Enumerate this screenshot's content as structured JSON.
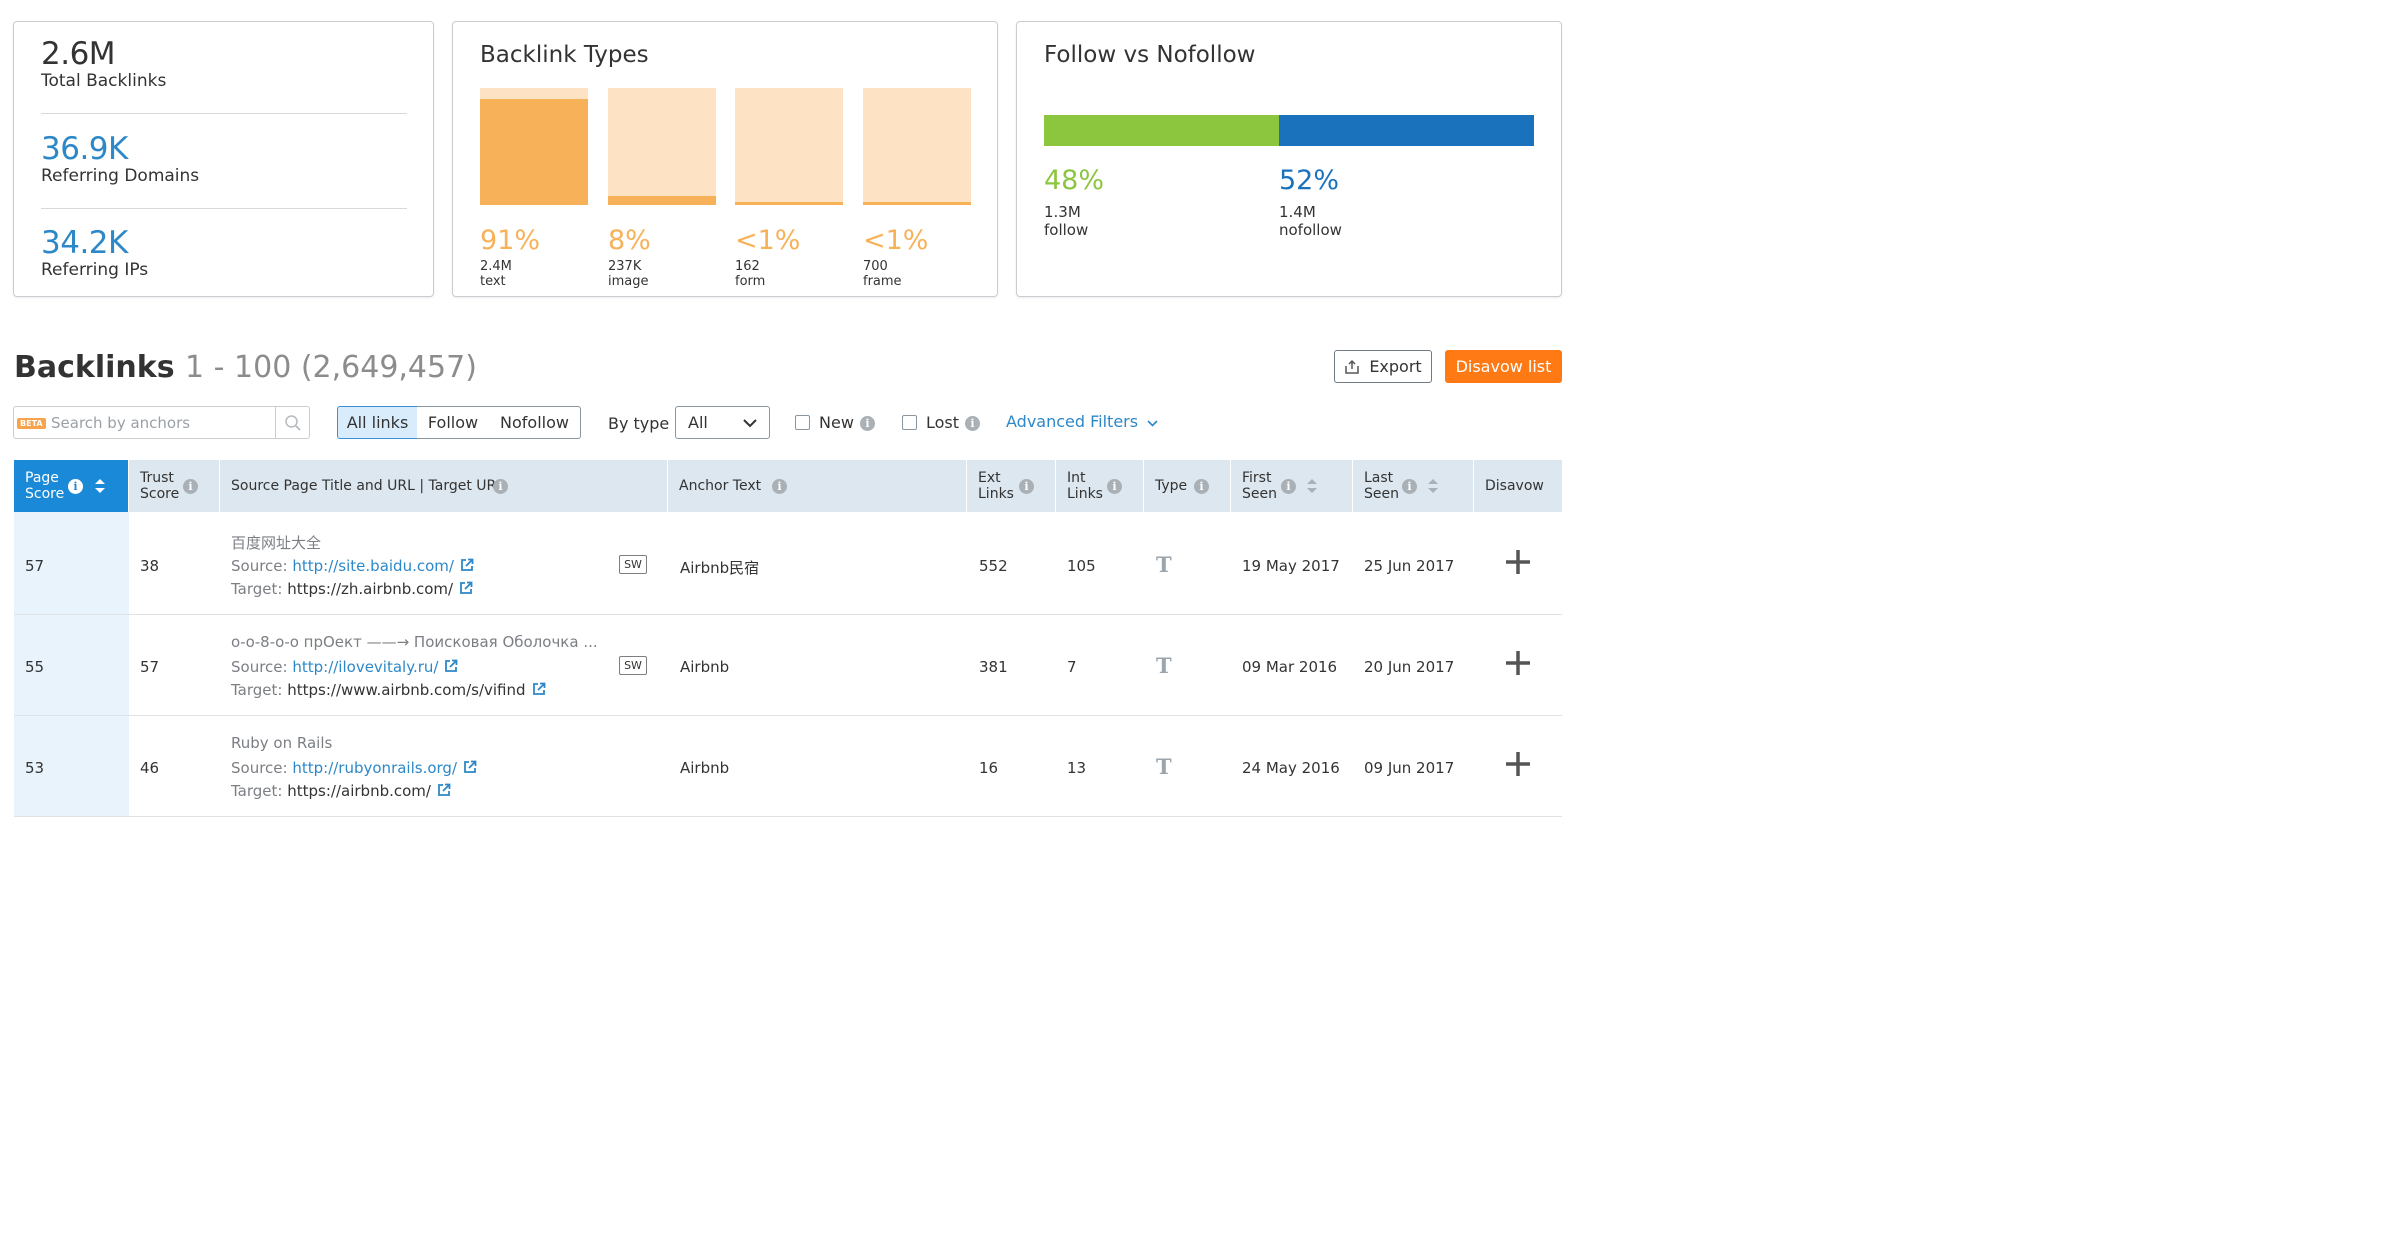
{
  "summary": {
    "total_backlinks": {
      "value": "2.6M",
      "label": "Total Backlinks"
    },
    "referring_domains": {
      "value": "36.9K",
      "label": "Referring Domains"
    },
    "referring_ips": {
      "value": "34.2K",
      "label": "Referring IPs"
    }
  },
  "backlink_types": {
    "title": "Backlink Types",
    "items": [
      {
        "pct": "91%",
        "count": "2.4M",
        "label": "text",
        "fill": 0.91
      },
      {
        "pct": "8%",
        "count": "237K",
        "label": "image",
        "fill": 0.08
      },
      {
        "pct": "<1%",
        "count": "162",
        "label": "form",
        "fill": 0.01
      },
      {
        "pct": "<1%",
        "count": "700",
        "label": "frame",
        "fill": 0.01
      }
    ],
    "colors": {
      "fill": "#f7b159",
      "track": "#fde3c4",
      "text": "#f7b159"
    }
  },
  "follow_vs_nofollow": {
    "title": "Follow vs Nofollow",
    "follow": {
      "pct": "48%",
      "count": "1.3M",
      "label": "follow",
      "share": 0.48,
      "color": "#8cc63f"
    },
    "nofollow": {
      "pct": "52%",
      "count": "1.4M",
      "label": "nofollow",
      "share": 0.52,
      "color": "#1a72bd"
    }
  },
  "backlinks": {
    "title": "Backlinks",
    "range": "1 - 100 (2,649,457)",
    "export_label": "Export",
    "disavow_list_label": "Disavow list"
  },
  "filters": {
    "search_placeholder": "Search by anchors",
    "beta_badge": "BETA",
    "link_tabs": [
      "All links",
      "Follow",
      "Nofollow"
    ],
    "by_type_label": "By type",
    "type_value": "All",
    "new_label": "New",
    "lost_label": "Lost",
    "advanced_label": "Advanced Filters"
  },
  "table": {
    "columns": {
      "page_score": [
        "Page",
        "Score"
      ],
      "trust_score": [
        "Trust",
        "Score"
      ],
      "source": "Source Page Title and URL | Target URL",
      "anchor": "Anchor Text",
      "ext_links": [
        "Ext",
        "Links"
      ],
      "int_links": [
        "Int",
        "Links"
      ],
      "type": "Type",
      "first_seen": [
        "First",
        "Seen"
      ],
      "last_seen": [
        "Last",
        "Seen"
      ],
      "disavow": "Disavow"
    },
    "source_prefix": "Source:",
    "target_prefix": "Target:",
    "sw_badge": "SW",
    "type_glyph": "T",
    "rows": [
      {
        "page_score": "57",
        "trust_score": "38",
        "title": "百度网址大全",
        "source_url": "http://site.baidu.com/",
        "target_url": "https://zh.airbnb.com/",
        "sw": true,
        "anchor": "Airbnb民宿",
        "ext_links": "552",
        "int_links": "105",
        "first_seen": "19 May 2017",
        "last_seen": "25 Jun 2017"
      },
      {
        "page_score": "55",
        "trust_score": "57",
        "title": "о-о-8-о-о прОект ——→ Поисковая Оболочка ...",
        "source_url": "http://ilovevitaly.ru/",
        "target_url": "https://www.airbnb.com/s/vifind",
        "sw": true,
        "anchor": "Airbnb",
        "ext_links": "381",
        "int_links": "7",
        "first_seen": "09 Mar 2016",
        "last_seen": "20 Jun 2017"
      },
      {
        "page_score": "53",
        "trust_score": "46",
        "title": "Ruby on Rails",
        "source_url": "http://rubyonrails.org/",
        "target_url": "https://airbnb.com/",
        "sw": false,
        "anchor": "Airbnb",
        "ext_links": "16",
        "int_links": "13",
        "first_seen": "24 May 2016",
        "last_seen": "09 Jun 2017"
      }
    ]
  },
  "colors": {
    "accent_blue": "#2d88c8",
    "orange": "#ff7a14",
    "header_bg": "#dde7ef",
    "page_score_header": "#1a8ad8"
  }
}
